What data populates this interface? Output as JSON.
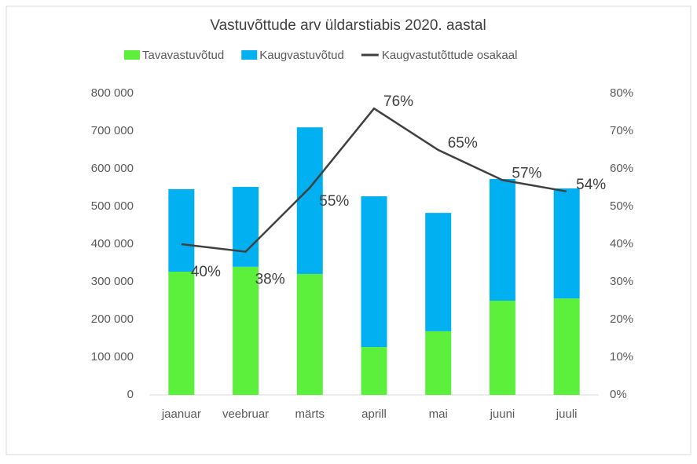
{
  "chart_data": {
    "type": "bar",
    "stacked": true,
    "title": "Vastuvõttude arv üldarstiabis 2020. aastal",
    "categories": [
      "jaanuar",
      "veebruar",
      "märts",
      "aprill",
      "mai",
      "juuni",
      "juuli"
    ],
    "series": [
      {
        "name": "Tavavastuvõtud",
        "color": "#5cf03c",
        "values": [
          327000,
          340000,
          321000,
          127000,
          169000,
          250000,
          256000
        ]
      },
      {
        "name": "Kaugvastuvõtud",
        "color": "#00b0f0",
        "values": [
          219000,
          212000,
          389000,
          400000,
          314000,
          323000,
          292000
        ]
      },
      {
        "name": "Kaugvastutõttude osakaal",
        "type": "line",
        "axis": "y2",
        "color": "#404040",
        "values": [
          40,
          38,
          55,
          76,
          65,
          57,
          54
        ],
        "value_labels": [
          "40%",
          "38%",
          "55%",
          "76%",
          "65%",
          "57%",
          "54%"
        ]
      }
    ],
    "ylim": [
      0,
      800000
    ],
    "yticks": [
      0,
      {
        "value": 100000,
        "label": "100 000"
      },
      {
        "value": 200000,
        "label": "200 000"
      },
      {
        "value": 300000,
        "label": "300 000"
      },
      {
        "value": 400000,
        "label": "400 000"
      },
      {
        "value": 500000,
        "label": "500 000"
      },
      {
        "value": 600000,
        "label": "600 000"
      },
      {
        "value": 700000,
        "label": "700 000"
      },
      {
        "value": 800000,
        "label": "800 000"
      }
    ],
    "y2lim": [
      0,
      80
    ],
    "y2ticks": [
      {
        "value": 0,
        "label": "0%"
      },
      {
        "value": 10,
        "label": "10%"
      },
      {
        "value": 20,
        "label": "20%"
      },
      {
        "value": 30,
        "label": "30%"
      },
      {
        "value": 40,
        "label": "40%"
      },
      {
        "value": 50,
        "label": "50%"
      },
      {
        "value": 60,
        "label": "60%"
      },
      {
        "value": 70,
        "label": "70%"
      },
      {
        "value": 80,
        "label": "80%"
      }
    ],
    "grid": false,
    "legend": "top"
  }
}
